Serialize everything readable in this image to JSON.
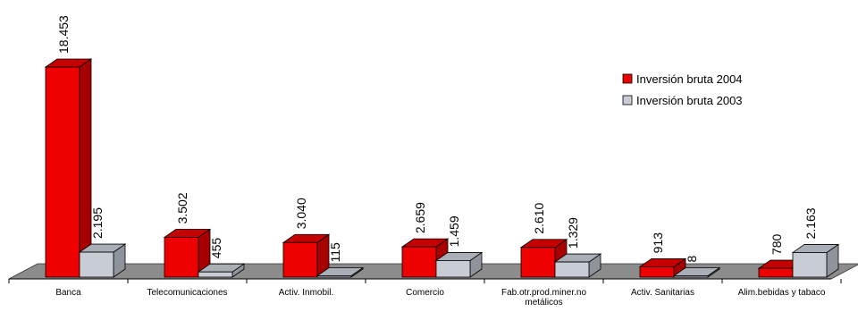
{
  "chart_data": {
    "type": "bar",
    "categories": [
      "Banca",
      "Telecomunicaciones",
      "Activ. Inmobil.",
      "Comercio",
      "Fab.otr.prod.miner.no metálicos",
      "Activ. Sanitarias",
      "Alim.bebidas y tabaco"
    ],
    "series": [
      {
        "name": "Inversión bruta 2004",
        "values": [
          18453,
          3502,
          3040,
          2659,
          2610,
          913,
          780
        ],
        "labels": [
          "18.453",
          "3.502",
          "3.040",
          "2.659",
          "2.610",
          "913",
          "780"
        ],
        "color": "#ee0000"
      },
      {
        "name": "Inversión bruta 2003",
        "values": [
          2195,
          455,
          115,
          1459,
          1329,
          8,
          2163
        ],
        "labels": [
          "2.195",
          "455",
          "115",
          "1.459",
          "1.329",
          "8",
          "2.163"
        ],
        "color": "#c8ccd4"
      }
    ],
    "ylim": [
      0,
      18453
    ],
    "grid": false,
    "legend_position": "top-right",
    "style": "3d-columns"
  }
}
